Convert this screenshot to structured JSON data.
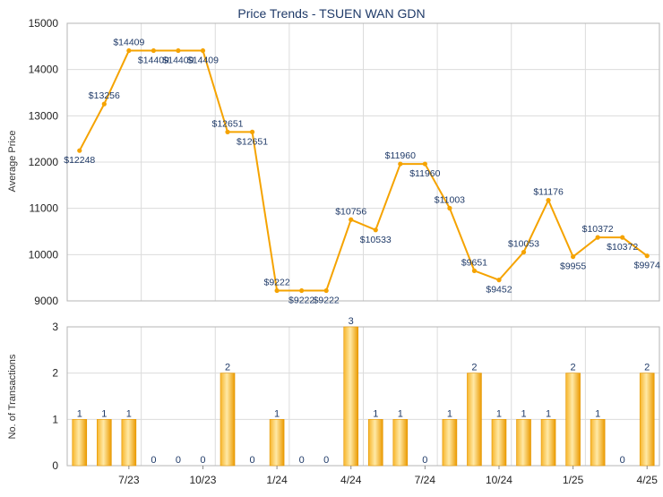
{
  "chart_data": [
    {
      "type": "line",
      "title": "Price Trends - TSUEN WAN GDN",
      "xlabel": "",
      "ylabel": "Average Price",
      "ylim": [
        9000,
        15000
      ],
      "yticks": [
        "9000",
        "10000",
        "11000",
        "12000",
        "13000",
        "14000",
        "15000"
      ],
      "grid": true,
      "color": "#f5a300",
      "series": [
        {
          "values": [
            12248,
            13256,
            14409,
            14409,
            14409,
            14409,
            12651,
            12651,
            9222,
            9222,
            9222,
            10756,
            10533,
            11960,
            11960,
            11003,
            9651,
            9452,
            10053,
            11176,
            9955,
            10372,
            10372,
            9974
          ],
          "labels": [
            "$12248",
            "$13256",
            "$14409",
            "$14409",
            "$14409",
            "$14409",
            "$12651",
            "$12651",
            "$9222",
            "$9222",
            "$9222",
            "$10756",
            "$10533",
            "$11960",
            "$11960",
            "$11003",
            "$9651",
            "$9452",
            "$10053",
            "$11176",
            "$9955",
            "$10372",
            "$10372",
            "$9974"
          ]
        }
      ]
    },
    {
      "type": "bar",
      "xlabel": "",
      "ylabel": "No. of Transactions",
      "ylim": [
        0,
        3
      ],
      "yticks": [
        "0",
        "1",
        "2",
        "3"
      ],
      "grid": true,
      "color": "#f5a300",
      "values": [
        1,
        1,
        1,
        0,
        0,
        0,
        2,
        0,
        1,
        0,
        0,
        3,
        1,
        1,
        0,
        1,
        2,
        1,
        1,
        1,
        2,
        1,
        0,
        2
      ],
      "xtick_labels": [
        "7/23",
        "10/23",
        "1/24",
        "4/24",
        "7/24",
        "10/24",
        "1/25",
        "4/25"
      ]
    }
  ]
}
